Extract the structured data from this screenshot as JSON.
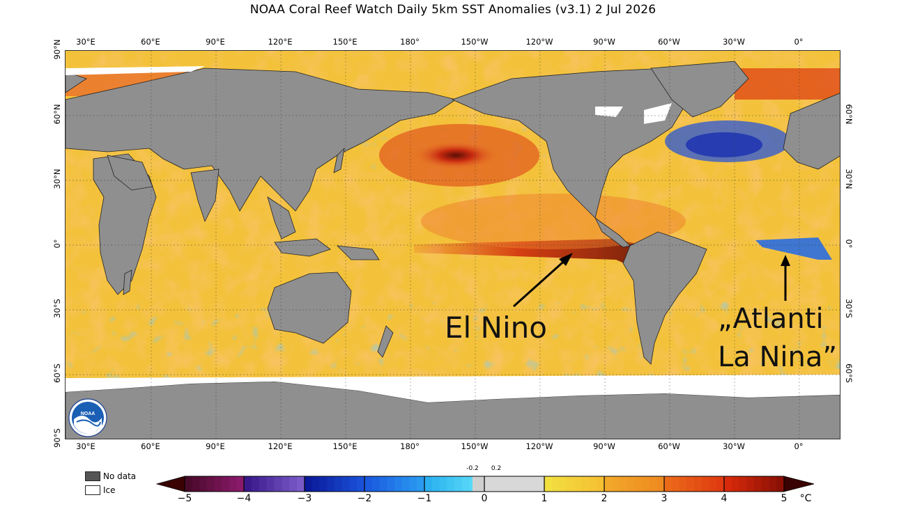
{
  "title": "NOAA Coral Reef Watch Daily 5km SST Anomalies  (v3.1)   2 Jul 2026",
  "lon_labels": [
    "30°E",
    "60°E",
    "90°E",
    "120°E",
    "150°E",
    "180°",
    "150°W",
    "120°W",
    "90°W",
    "60°W",
    "30°W",
    "0°"
  ],
  "lat_labels_left": [
    "90°N",
    "60°N",
    "30°N",
    "0°",
    "30°S",
    "60°S",
    "90°S"
  ],
  "lat_labels_right": [
    "60°N",
    "30°N",
    "0°",
    "30°S",
    "60°S"
  ],
  "annotations": {
    "el_nino": "El Nino",
    "atlantic_line1": "„Atlanti",
    "atlantic_line2": "La Nina”"
  },
  "legend": {
    "no_data": "No data",
    "ice": "Ice",
    "no_data_color": "#555555",
    "ice_color": "#ffffff"
  },
  "colorbar": {
    "ticks": [
      "−5",
      "−4",
      "−3",
      "−2",
      "−1",
      "0",
      "1",
      "2",
      "3",
      "4",
      "5"
    ],
    "small_ticks": [
      "-0.2",
      "0.2"
    ],
    "unit": "°C"
  },
  "colors": {
    "land": "#8f8f8f",
    "ice": "#ffffff",
    "warm": "#f5c33b",
    "hot": "#e03a10",
    "cool": "#2f8fe8"
  }
}
